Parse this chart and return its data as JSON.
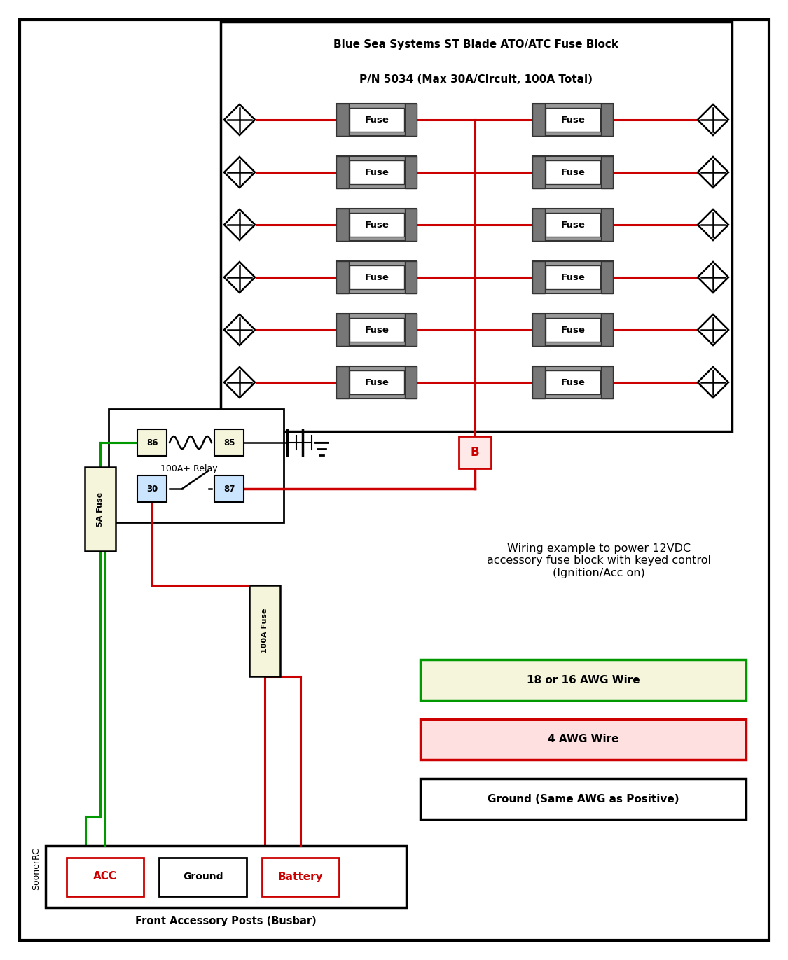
{
  "bg_color": "#ffffff",
  "outer_border_color": "#000000",
  "fuse_block_title_line1": "Blue Sea Systems ST Blade ATO/ATC Fuse Block",
  "fuse_block_title_line2": "P/N 5034 (Max 30A/Circuit, 100A Total)",
  "num_fuse_rows": 6,
  "red_wire_color": "#cc0000",
  "green_wire_color": "#009900",
  "black_wire_color": "#000000",
  "fuse_fill": "#888888",
  "fuse_inner_fill": "#ffffff",
  "relay_label": "100A+ Relay",
  "acc_label": "ACC",
  "gnd_label": "Ground",
  "bat_label": "Battery",
  "busbar_label": "Front Accessory Posts (Busbar)",
  "watermark": "SoonerRC",
  "wiring_text": "Wiring example to power 12VDC\naccessory fuse block with keyed control\n(Ignition/Acc on)",
  "legend_items": [
    {
      "label": "18 or 16 AWG Wire",
      "fill": "#f5f5dc",
      "border": "#009900"
    },
    {
      "label": "4 AWG Wire",
      "fill": "#ffe0e0",
      "border": "#cc0000"
    },
    {
      "label": "Ground (Same AWG as Positive)",
      "fill": "#ffffff",
      "border": "#000000"
    }
  ],
  "fuse_5a_label": "5A Fuse",
  "fuse_100a_label": "100A Fuse"
}
